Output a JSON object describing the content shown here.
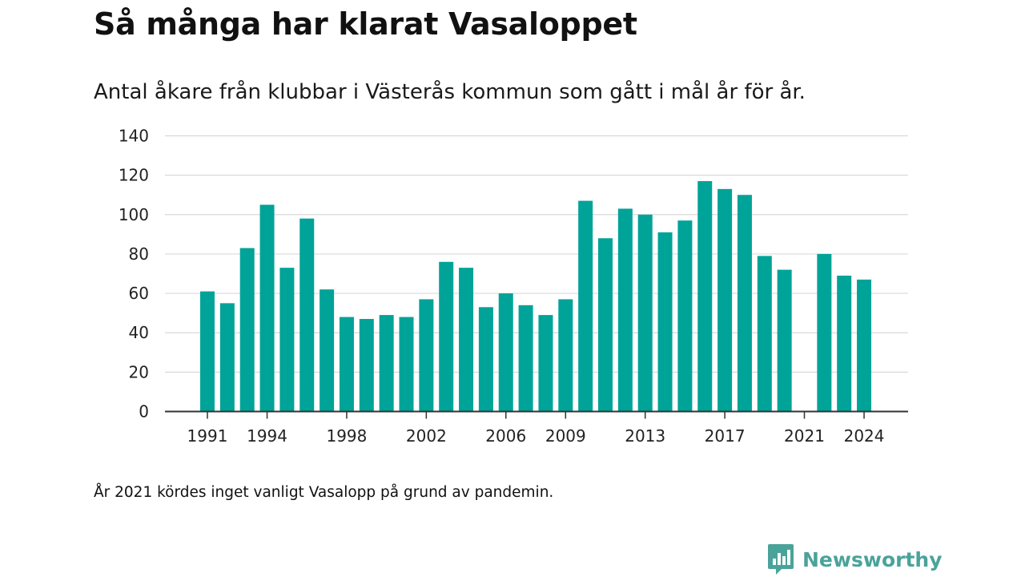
{
  "title": "Så många har klarat Vasaloppet",
  "subtitle": "Antal åkare från klubbar i Västerås kommun som gått i mål år för år.",
  "footnote": "År 2021 kördes inget vanligt Vasalopp på grund av pandemin.",
  "brand": {
    "name": "Newsworthy",
    "icon": "newsworthy-logo-icon",
    "color": "#4aa39a"
  },
  "chart_data": {
    "type": "bar",
    "categories": [
      1991,
      1992,
      1993,
      1994,
      1995,
      1996,
      1997,
      1998,
      1999,
      2000,
      2001,
      2002,
      2003,
      2004,
      2005,
      2006,
      2007,
      2008,
      2009,
      2010,
      2011,
      2012,
      2013,
      2014,
      2015,
      2016,
      2017,
      2018,
      2019,
      2020,
      2021,
      2022,
      2023,
      2024
    ],
    "values": [
      61,
      55,
      83,
      105,
      73,
      98,
      62,
      48,
      47,
      49,
      48,
      57,
      76,
      73,
      53,
      60,
      54,
      49,
      57,
      107,
      88,
      103,
      100,
      91,
      97,
      117,
      113,
      110,
      79,
      72,
      null,
      80,
      69,
      67
    ],
    "x_tick_labels": [
      "1991",
      "1994",
      "1998",
      "2002",
      "2006",
      "2009",
      "2013",
      "2017",
      "2021",
      "2024"
    ],
    "y_ticks": [
      0,
      20,
      40,
      60,
      80,
      100,
      120,
      140
    ],
    "ylim": [
      0,
      140
    ],
    "xlabel": "",
    "ylabel": "",
    "bar_color": "#00a398",
    "grid": true
  }
}
